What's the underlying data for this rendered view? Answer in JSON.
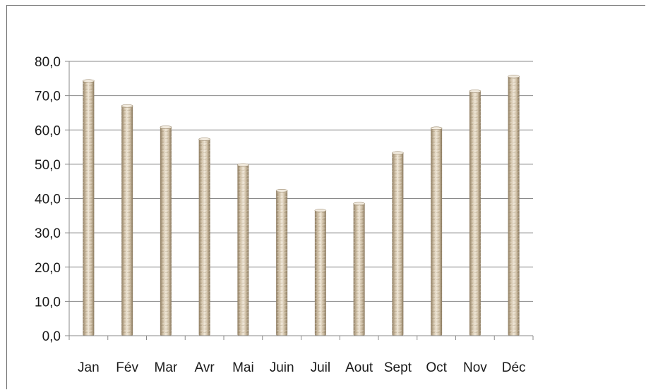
{
  "chart_data": {
    "type": "bar",
    "title": "",
    "xlabel": "",
    "ylabel": "",
    "categories": [
      "Jan",
      "Fév",
      "Mar",
      "Avr",
      "Mai",
      "Juin",
      "Juil",
      "Aout",
      "Sept",
      "Oct",
      "Nov",
      "Déc"
    ],
    "values": [
      74.5,
      67.2,
      61.0,
      57.5,
      50.0,
      42.5,
      36.7,
      38.7,
      53.5,
      60.7,
      71.5,
      75.8
    ],
    "ylim": [
      0,
      80
    ],
    "y_ticks": [
      "0,0",
      "10,0",
      "20,0",
      "30,0",
      "40,0",
      "50,0",
      "60,0",
      "70,0",
      "80,0"
    ],
    "grid": true,
    "legend": "none",
    "colors": {
      "bar_light": "#ede3d3",
      "bar_mid": "#cdbda3",
      "bar_dark": "#8e7d62",
      "grid": "#8a8a8a",
      "axis": "#8a8a8a"
    }
  }
}
